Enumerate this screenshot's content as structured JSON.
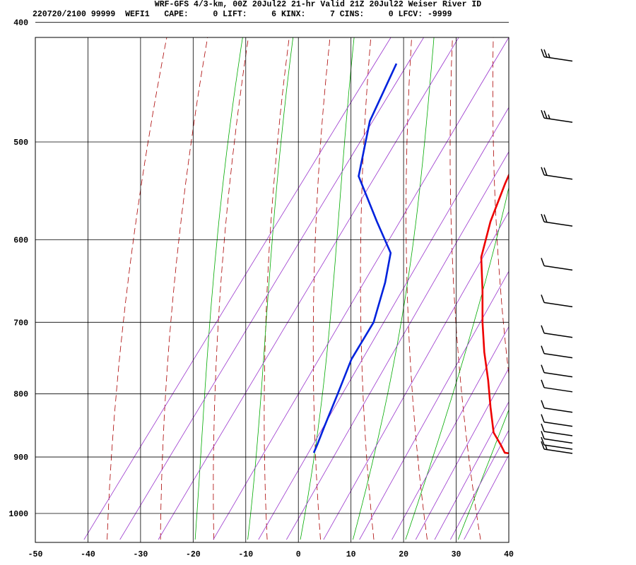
{
  "header": {
    "line1": "WRF-GFS 4/3-km, 00Z 20Jul22 21-hr Valid 21Z 20Jul22 Weiser River ID",
    "line2": "220720/2100 99999  WEFI1   CAPE:     0 LIFT:     6 KINX:     7 CINS:     0 LFCV: -9999"
  },
  "chart_data": {
    "type": "line",
    "chart_kind": "skew-T log-P sounding",
    "x_ticks": [
      -50,
      -40,
      -30,
      -20,
      -10,
      0,
      10,
      20,
      30,
      40
    ],
    "y_ticks": [
      400,
      500,
      600,
      700,
      800,
      900,
      1000
    ],
    "xlim": [
      -50,
      40
    ],
    "ylim": [
      1050,
      400
    ],
    "y_scale": "log",
    "grid": true,
    "colors": {
      "temperature": "#ee0000",
      "dewpoint": "#0022dd",
      "dry_adiabat": "#aa0000",
      "moist_adiabat": "#00aa00",
      "mixing_ratio": "#9933cc",
      "grid": "#000000",
      "wind": "#000000"
    },
    "series": [
      {
        "name": "Temperature",
        "points": [
          [
            432,
            -15.4
          ],
          [
            468,
            -12.6
          ],
          [
            500,
            -10.5
          ],
          [
            540,
            -8.5
          ],
          [
            580,
            -6.2
          ],
          [
            620,
            -3.2
          ],
          [
            660,
            1.5
          ],
          [
            700,
            5.7
          ],
          [
            740,
            10.0
          ],
          [
            780,
            14.5
          ],
          [
            820,
            18.5
          ],
          [
            860,
            22.5
          ],
          [
            880,
            25.5
          ],
          [
            893,
            27.3
          ],
          [
            894,
            28.3
          ]
        ]
      },
      {
        "name": "Dewpoint",
        "points": [
          [
            432,
            -45.1
          ],
          [
            481,
            -42.5
          ],
          [
            533,
            -37.3
          ],
          [
            580,
            -27.8
          ],
          [
            615,
            -21.0
          ],
          [
            650,
            -18.1
          ],
          [
            700,
            -15.0
          ],
          [
            750,
            -14.3
          ],
          [
            800,
            -12.3
          ],
          [
            850,
            -10.5
          ],
          [
            880,
            -9.4
          ],
          [
            893,
            -9.0
          ]
        ]
      }
    ],
    "winds": [
      {
        "p": 430,
        "barbs": 2.5
      },
      {
        "p": 482,
        "barbs": 2.5
      },
      {
        "p": 536,
        "barbs": 2
      },
      {
        "p": 585,
        "barbs": 2
      },
      {
        "p": 635,
        "barbs": 1
      },
      {
        "p": 680,
        "barbs": 1
      },
      {
        "p": 720,
        "barbs": 1
      },
      {
        "p": 748,
        "barbs": 1
      },
      {
        "p": 775,
        "barbs": 1
      },
      {
        "p": 797,
        "barbs": 1
      },
      {
        "p": 828,
        "barbs": 1
      },
      {
        "p": 850,
        "barbs": 1
      },
      {
        "p": 865,
        "barbs": 1
      },
      {
        "p": 877,
        "barbs": 1
      },
      {
        "p": 887,
        "barbs": 1
      },
      {
        "p": 894,
        "barbs": 1.5
      }
    ]
  }
}
